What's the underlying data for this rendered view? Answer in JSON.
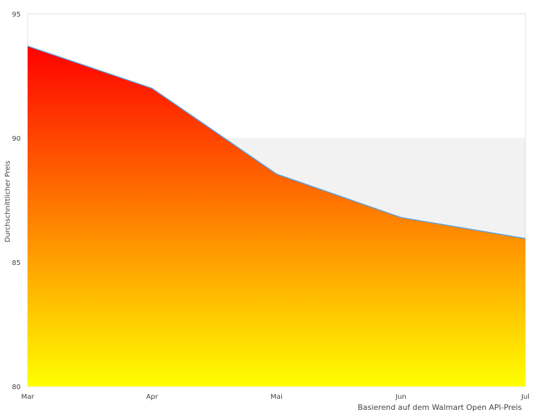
{
  "chart_data": {
    "type": "area",
    "categories": [
      "Mar",
      "Apr",
      "Mai",
      "Jun",
      "Jul"
    ],
    "values": [
      93.7,
      92.0,
      88.55,
      86.8,
      85.95
    ],
    "ylabel": "Durchschnittlicher Preis",
    "xlabel": "",
    "ylim": [
      80,
      95
    ],
    "yticks": [
      80,
      85,
      90,
      95
    ],
    "grid": false,
    "bands": [
      {
        "from": 85,
        "to": 90,
        "color": "#f2f2f2"
      }
    ],
    "colors": {
      "fill_top": "#ff0000",
      "fill_bottom": "#ffff00",
      "line": "#5aa0e0",
      "border": "#dddddd"
    },
    "footnote": "Basierend auf dem Walmart Open API-Preis"
  }
}
